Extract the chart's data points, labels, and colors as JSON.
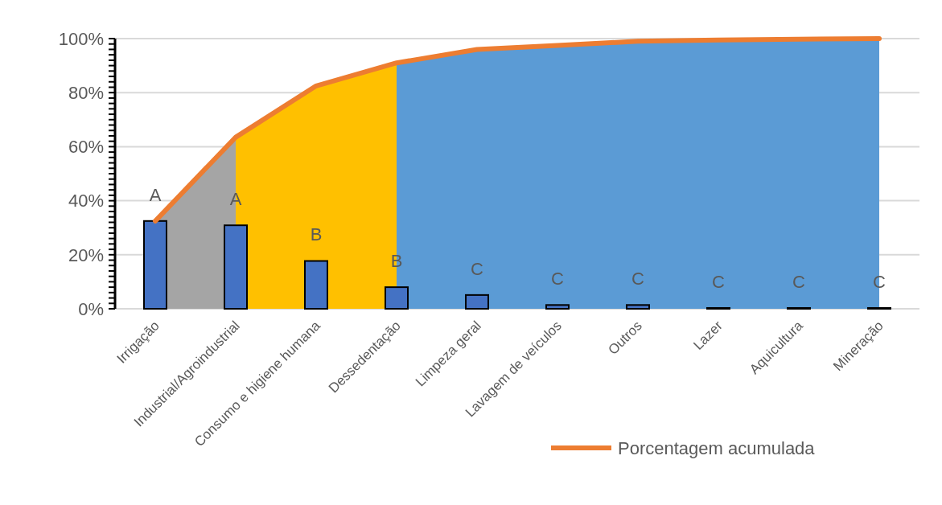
{
  "chart_data": {
    "type": "bar",
    "categories": [
      "Irrigação",
      "Industrial/Agroindustrial",
      "Consumo e higiene humana",
      "Dessedentação",
      "Limpeza geral",
      "Lavagem de veículos",
      "Outros",
      "Lazer",
      "Aquicultura",
      "Mineração"
    ],
    "series": [
      {
        "type": "area",
        "color": "#a5a5a5",
        "values": [
          32.5,
          63.5,
          null,
          null,
          null,
          null,
          null,
          null,
          null,
          null
        ]
      },
      {
        "type": "area",
        "color": "#ffc000",
        "values": [
          null,
          63.5,
          82.5,
          91,
          null,
          null,
          null,
          null,
          null,
          null
        ]
      },
      {
        "type": "area",
        "color": "#5b9bd5",
        "values": [
          null,
          null,
          null,
          91,
          96,
          97.5,
          99,
          99.5,
          99.8,
          100
        ]
      },
      {
        "color": "#4472c4",
        "values": [
          32.5,
          30.9,
          17.7,
          8,
          5.1,
          1.4,
          1.4,
          0.3,
          0.3,
          0.3
        ]
      },
      {
        "type": "line",
        "name": "Porcentagem acumulada",
        "color": "#ed7d31",
        "values": [
          32.5,
          63.5,
          82.5,
          91,
          96,
          97.5,
          99,
          99.5,
          99.8,
          100
        ]
      }
    ],
    "ylim": [
      0,
      100
    ],
    "yticks": [
      {
        "value": 0,
        "label": "0%"
      },
      {
        "value": 2,
        "label": null
      },
      {
        "value": 4,
        "label": null
      },
      {
        "value": 6,
        "label": null
      },
      {
        "value": 8,
        "label": null
      },
      {
        "value": 10,
        "label": null
      },
      {
        "value": 12,
        "label": null
      },
      {
        "value": 14,
        "label": null
      },
      {
        "value": 16,
        "label": null
      },
      {
        "value": 18,
        "label": null
      },
      {
        "value": 20,
        "label": "20%"
      },
      {
        "value": 22,
        "label": null
      },
      {
        "value": 24,
        "label": null
      },
      {
        "value": 26,
        "label": null
      },
      {
        "value": 28,
        "label": null
      },
      {
        "value": 30,
        "label": null
      },
      {
        "value": 32,
        "label": null
      },
      {
        "value": 34,
        "label": null
      },
      {
        "value": 36,
        "label": null
      },
      {
        "value": 38,
        "label": null
      },
      {
        "value": 40,
        "label": "40%"
      },
      {
        "value": 42,
        "label": null
      },
      {
        "value": 44,
        "label": null
      },
      {
        "value": 46,
        "label": null
      },
      {
        "value": 48,
        "label": null
      },
      {
        "value": 50,
        "label": null
      },
      {
        "value": 52,
        "label": null
      },
      {
        "value": 54,
        "label": null
      },
      {
        "value": 56,
        "label": null
      },
      {
        "value": 58,
        "label": null
      },
      {
        "value": 60,
        "label": "60%"
      },
      {
        "value": 62,
        "label": null
      },
      {
        "value": 64,
        "label": null
      },
      {
        "value": 66,
        "label": null
      },
      {
        "value": 68,
        "label": null
      },
      {
        "value": 70,
        "label": null
      },
      {
        "value": 72,
        "label": null
      },
      {
        "value": 74,
        "label": null
      },
      {
        "value": 76,
        "label": null
      },
      {
        "value": 78,
        "label": null
      },
      {
        "value": 80,
        "label": "80%"
      },
      {
        "value": 82,
        "label": null
      },
      {
        "value": 84,
        "label": null
      },
      {
        "value": 86,
        "label": null
      },
      {
        "value": 88,
        "label": null
      },
      {
        "value": 90,
        "label": null
      },
      {
        "value": 92,
        "label": null
      },
      {
        "value": 94,
        "label": null
      },
      {
        "value": 96,
        "label": null
      },
      {
        "value": 98,
        "label": null
      },
      {
        "value": 100,
        "label": "100%"
      }
    ],
    "grid": "y",
    "legend": "bottom right",
    "annotations": [
      {
        "text": "A",
        "x": "Irrigação",
        "y": 32.5
      },
      {
        "text": "A",
        "x": "Industrial/Agroindustrial",
        "y": 30.9
      },
      {
        "text": "B",
        "x": "Consumo e higiene humana",
        "y": 17.7
      },
      {
        "text": "B",
        "x": "Dessedentação",
        "y": 8
      },
      {
        "text": "C",
        "x": "Limpeza geral",
        "y": 5.1
      },
      {
        "text": "C",
        "x": "Lavagem de veículos",
        "y": 1.4
      },
      {
        "text": "C",
        "x": "Outros",
        "y": 1.4
      },
      {
        "text": "C",
        "x": "Lazer",
        "y": 0.3
      },
      {
        "text": "C",
        "x": "Aquicultura",
        "y": 0.3
      },
      {
        "text": "C",
        "x": "Mineração",
        "y": 0.3
      }
    ]
  }
}
